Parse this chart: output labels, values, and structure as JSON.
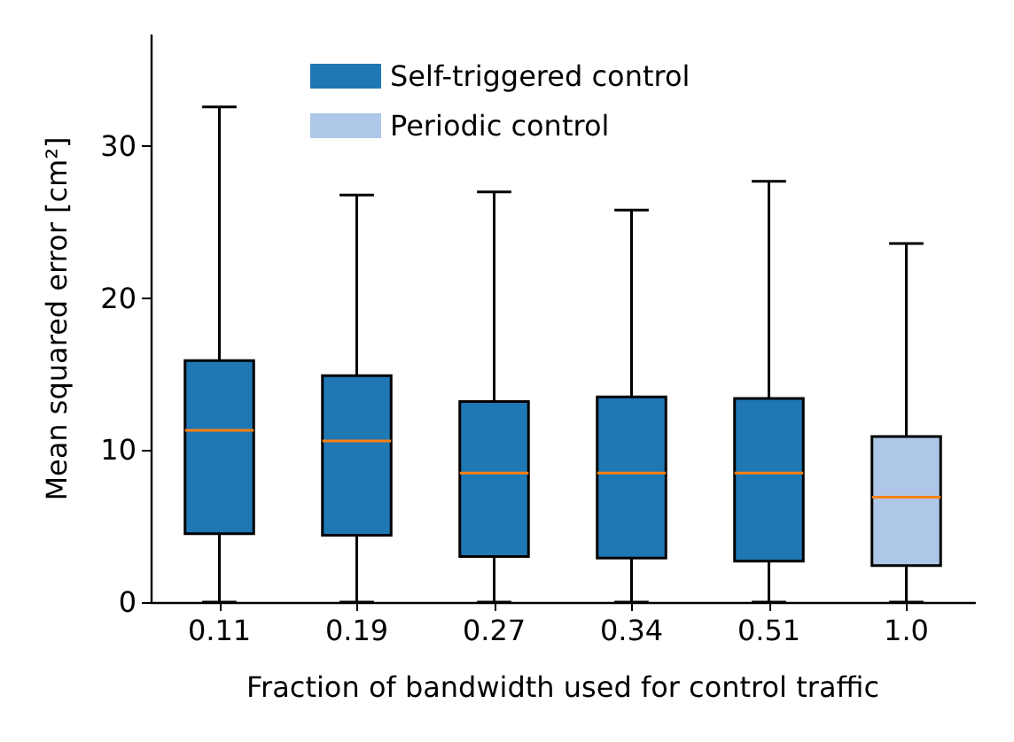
{
  "chart_data": {
    "type": "box",
    "xlabel": "Fraction of bandwidth used for control traffic",
    "ylabel": "Mean squared error [cm²]",
    "categories": [
      "0.11",
      "0.19",
      "0.27",
      "0.34",
      "0.51",
      "1.0"
    ],
    "series": [
      {
        "name": "Self-triggered control",
        "color": "#1f77b4",
        "boxes": [
          {
            "low": 0,
            "q1": 4.5,
            "median": 11.3,
            "q3": 15.9,
            "high": 32.6
          },
          {
            "low": 0,
            "q1": 4.4,
            "median": 10.6,
            "q3": 14.9,
            "high": 26.8
          },
          {
            "low": 0,
            "q1": 3.0,
            "median": 8.5,
            "q3": 13.2,
            "high": 27.0
          },
          {
            "low": 0,
            "q1": 2.9,
            "median": 8.5,
            "q3": 13.5,
            "high": 25.8
          },
          {
            "low": 0,
            "q1": 2.7,
            "median": 8.5,
            "q3": 13.4,
            "high": 27.7
          },
          null
        ]
      },
      {
        "name": "Periodic control",
        "color": "#aec7e8",
        "boxes": [
          null,
          null,
          null,
          null,
          null,
          {
            "low": 0,
            "q1": 2.4,
            "median": 6.9,
            "q3": 10.9,
            "high": 23.6
          }
        ]
      }
    ],
    "ylim": [
      0,
      37.3
    ],
    "yticks": [
      0,
      10,
      20,
      30
    ],
    "grid": false,
    "legend": "top"
  }
}
